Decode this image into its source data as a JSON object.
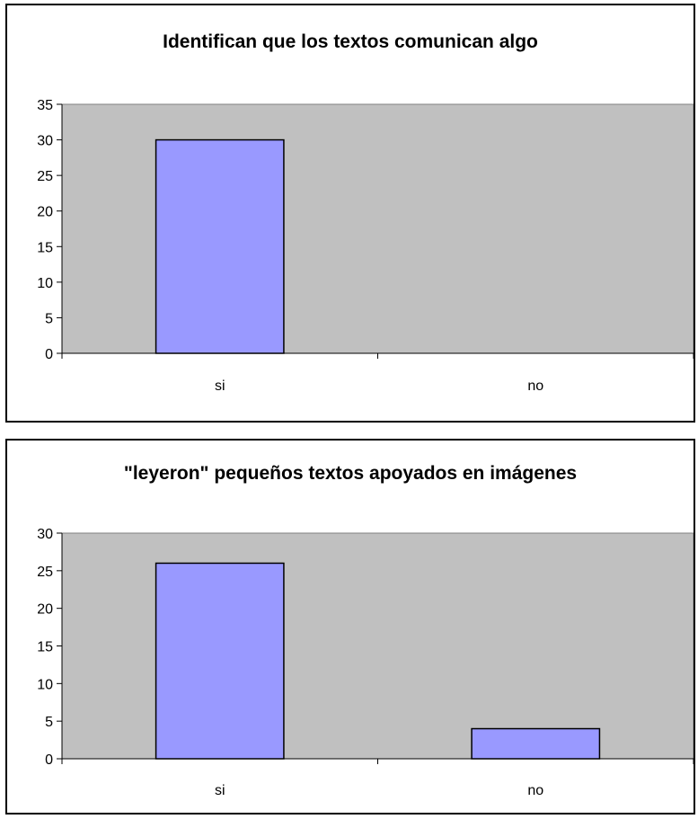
{
  "chart_data": [
    {
      "type": "bar",
      "title": "Identifican que los textos comunican algo",
      "categories": [
        "si",
        "no"
      ],
      "values": [
        30,
        0
      ],
      "ylim": [
        0,
        35
      ],
      "yticks": [
        0,
        5,
        10,
        15,
        20,
        25,
        30,
        35
      ],
      "xlabel": "",
      "ylabel": "",
      "legend": "none",
      "plot_bg_color": "#c0c0c0",
      "bar_color": "#9999ff"
    },
    {
      "type": "bar",
      "title": "\"leyeron\" pequeños textos apoyados en imágenes",
      "categories": [
        "si",
        "no"
      ],
      "values": [
        26,
        4
      ],
      "ylim": [
        0,
        30
      ],
      "yticks": [
        0,
        5,
        10,
        15,
        20,
        25,
        30
      ],
      "xlabel": "",
      "ylabel": "",
      "legend": "none",
      "plot_bg_color": "#c0c0c0",
      "bar_color": "#9999ff"
    }
  ]
}
